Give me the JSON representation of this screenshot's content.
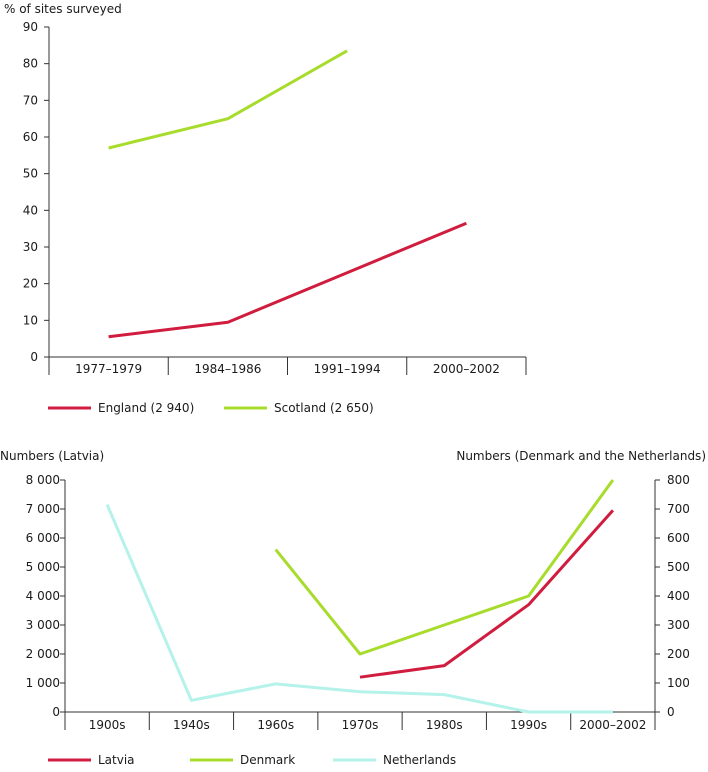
{
  "chart_data": [
    {
      "type": "line",
      "ylabel": "% of sites surveyed",
      "categories": [
        "1977–1979",
        "1984–1986",
        "1991–1994",
        "2000–2002"
      ],
      "ylim": [
        0,
        90
      ],
      "yticks": [
        0,
        10,
        20,
        30,
        40,
        50,
        60,
        70,
        80,
        90
      ],
      "series": [
        {
          "name": "England (2 940)",
          "color": "#d01c3e",
          "values": [
            5.5,
            9.5,
            23,
            36.5
          ]
        },
        {
          "name": "Scotland (2 650)",
          "color": "#a8dc2c",
          "values": [
            57,
            65,
            83.5,
            null
          ]
        }
      ],
      "legend_position": "bottom-left"
    },
    {
      "type": "line",
      "ylabel_left": "Numbers (Latvia)",
      "ylabel_right": "Numbers (Denmark and the Netherlands)",
      "categories": [
        "1900s",
        "1940s",
        "1960s",
        "1970s",
        "1980s",
        "1990s",
        "2000–2002"
      ],
      "ylim_left": [
        0,
        8000
      ],
      "ylim_right": [
        0,
        800
      ],
      "yticks_left": [
        "0",
        "1 000",
        "2 000",
        "3 000",
        "4 000",
        "5 000",
        "6 000",
        "7 000",
        "8 000"
      ],
      "yticks_right": [
        "0",
        "100",
        "200",
        "300",
        "400",
        "500",
        "600",
        "700",
        "800"
      ],
      "series": [
        {
          "name": "Latvia",
          "axis": "left",
          "color": "#d01c3e",
          "values": [
            null,
            null,
            null,
            1200,
            1600,
            3700,
            6950
          ]
        },
        {
          "name": "Denmark",
          "axis": "right",
          "color": "#a8dc2c",
          "values": [
            null,
            null,
            560,
            200,
            300,
            400,
            800
          ]
        },
        {
          "name": "Netherlands",
          "axis": "right",
          "color": "#b4f2ea",
          "values": [
            715,
            40,
            97,
            70,
            60,
            0,
            0
          ]
        }
      ],
      "legend_position": "bottom-left"
    }
  ]
}
